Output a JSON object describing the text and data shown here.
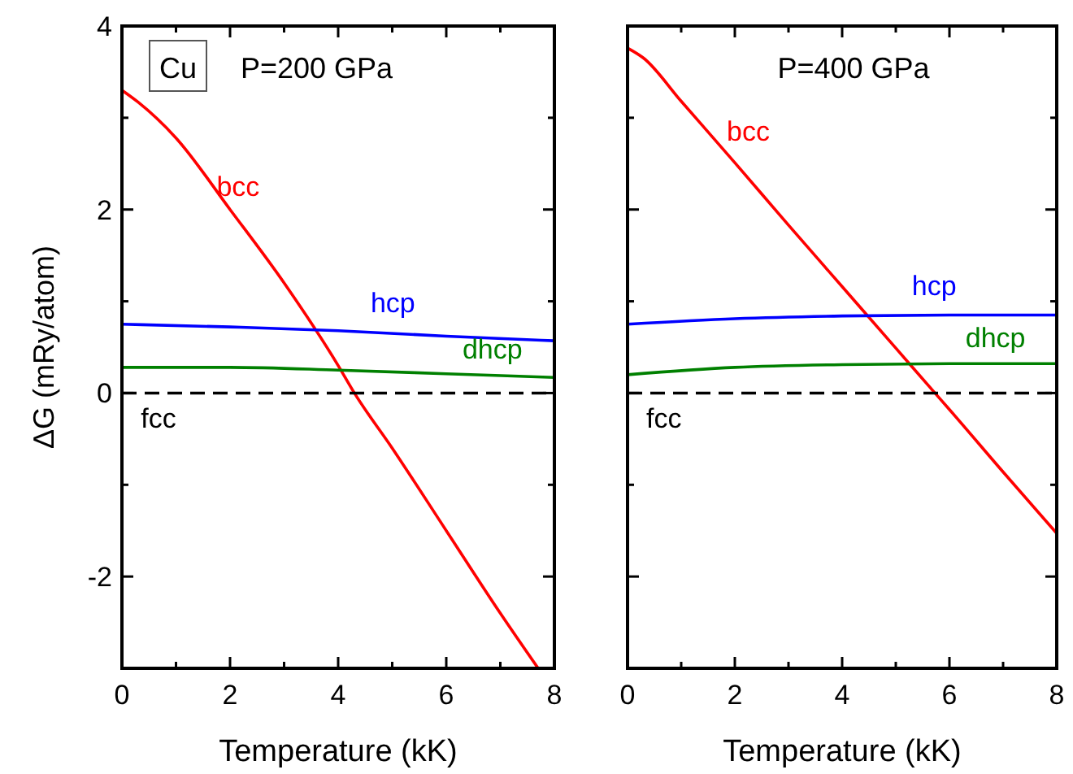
{
  "chart_data": [
    {
      "type": "line",
      "xlabel": "Temperature (kK)",
      "ylabel": "ΔG (mRy/atom)",
      "xlim": [
        0,
        8
      ],
      "ylim": [
        -3,
        4
      ],
      "xticks": [
        0,
        {
          "value": 1,
          "label": null
        },
        2,
        {
          "value": 3,
          "label": null
        },
        4,
        {
          "value": 5,
          "label": null
        },
        6,
        {
          "value": 7,
          "label": null
        },
        8
      ],
      "yticks": [
        {
          "value": -3,
          "label": null
        },
        -2,
        {
          "value": -1,
          "label": null
        },
        0,
        {
          "value": 1,
          "label": null
        },
        2,
        {
          "value": 3,
          "label": null
        },
        4
      ],
      "annotations": [
        "Cu",
        "P=200 GPa"
      ],
      "grid": false,
      "marker": "none",
      "series": [
        {
          "name": "bcc",
          "color": "#ff0000",
          "x": [
            0,
            0.3,
            1,
            2,
            3,
            4,
            4.3,
            5,
            6,
            7,
            7.7
          ],
          "values": [
            3.3,
            3.17,
            2.78,
            2.0,
            1.2,
            0.3,
            0,
            -0.6,
            -1.5,
            -2.4,
            -3.0
          ]
        },
        {
          "name": "hcp",
          "color": "#0000ff",
          "x": [
            0,
            2,
            4,
            6,
            8
          ],
          "values": [
            0.75,
            0.72,
            0.68,
            0.62,
            0.57
          ]
        },
        {
          "name": "dhcp",
          "color": "#008000",
          "x": [
            0,
            2,
            4,
            6,
            8
          ],
          "values": [
            0.28,
            0.28,
            0.25,
            0.21,
            0.17
          ]
        },
        {
          "name": "fcc",
          "color": "#000000",
          "line_style": "dashed",
          "x": [
            0,
            8
          ],
          "values": [
            0,
            0
          ]
        }
      ]
    },
    {
      "type": "line",
      "xlabel": "Temperature (kK)",
      "xlim": [
        0,
        8
      ],
      "ylim": [
        -3,
        4
      ],
      "tick_labels": "x",
      "xticks": [
        0,
        {
          "value": 1,
          "label": null
        },
        2,
        {
          "value": 3,
          "label": null
        },
        4,
        {
          "value": 5,
          "label": null
        },
        6,
        {
          "value": 7,
          "label": null
        },
        8
      ],
      "yticks": [
        {
          "value": -3,
          "label": null
        },
        -2,
        {
          "value": -1,
          "label": null
        },
        0,
        {
          "value": 1,
          "label": null
        },
        2,
        {
          "value": 3,
          "label": null
        },
        4
      ],
      "annotations": [
        "P=400 GPa"
      ],
      "grid": false,
      "marker": "none",
      "series": [
        {
          "name": "bcc",
          "color": "#ff0000",
          "x": [
            0,
            0.3,
            1,
            2,
            3,
            4,
            5,
            5.7,
            6,
            7,
            8
          ],
          "values": [
            3.76,
            3.65,
            3.18,
            2.51,
            1.83,
            1.16,
            0.49,
            0.02,
            -0.18,
            -0.86,
            -1.53
          ]
        },
        {
          "name": "hcp",
          "color": "#0000ff",
          "x": [
            0,
            2,
            4,
            6,
            8
          ],
          "values": [
            0.75,
            0.81,
            0.84,
            0.85,
            0.85
          ]
        },
        {
          "name": "dhcp",
          "color": "#008000",
          "x": [
            0,
            2,
            4,
            6,
            8
          ],
          "values": [
            0.2,
            0.28,
            0.31,
            0.32,
            0.32
          ]
        },
        {
          "name": "fcc",
          "color": "#000000",
          "line_style": "dashed",
          "x": [
            0,
            8
          ],
          "values": [
            0,
            0
          ]
        }
      ]
    }
  ]
}
